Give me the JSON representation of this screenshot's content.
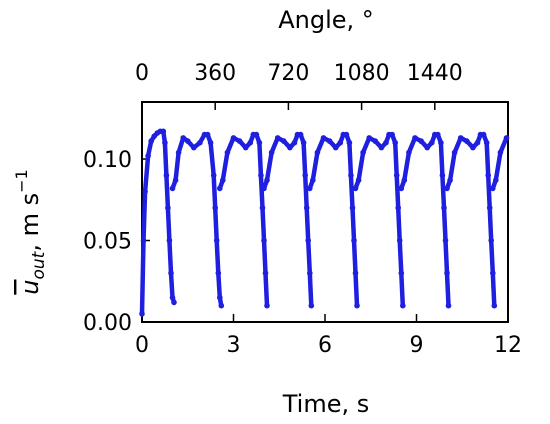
{
  "chart_data": {
    "type": "scatter",
    "xlabel": "Time, s",
    "top_xlabel": "Angle, °",
    "ylabel_main": "u",
    "ylabel_sub": "out",
    "ylabel_unit": ", m s",
    "ylabel_exp": "−1",
    "xlim": [
      0,
      12
    ],
    "ylim": [
      0.0,
      0.135
    ],
    "x_ticks": [
      0,
      3,
      6,
      9,
      12
    ],
    "x_tick_labels": [
      "0",
      "3",
      "6",
      "9",
      "12"
    ],
    "y_ticks": [
      0.0,
      0.05,
      0.1
    ],
    "y_tick_labels": [
      "0.00",
      "0.05",
      "0.10"
    ],
    "top_ticks_time": [
      0,
      2.4,
      4.8,
      7.2,
      9.6
    ],
    "top_tick_labels": [
      "0",
      "360",
      "720",
      "1080",
      "1440"
    ],
    "grid": false,
    "series": [
      {
        "color": "#1f1fe0",
        "marker": "dot",
        "x": [
          0.0,
          0.05,
          0.1,
          0.2,
          0.3,
          0.4,
          0.5,
          0.6,
          0.7,
          0.75,
          0.8,
          0.85,
          0.9,
          0.95,
          1.0,
          1.05,
          1.0,
          1.1,
          1.2,
          1.35,
          1.5,
          1.7,
          1.9,
          2.05,
          2.15,
          2.25,
          2.35,
          2.4,
          2.45,
          2.5,
          2.55,
          2.6,
          2.55,
          2.65,
          2.8,
          3.0,
          3.2,
          3.4,
          3.55,
          3.65,
          3.75,
          3.85,
          3.9,
          3.95,
          4.0,
          4.05,
          4.1,
          4.0,
          4.1,
          4.25,
          4.45,
          4.65,
          4.85,
          5.0,
          5.1,
          5.2,
          5.3,
          5.35,
          5.4,
          5.45,
          5.5,
          5.55,
          5.5,
          5.6,
          5.75,
          5.95,
          6.15,
          6.35,
          6.5,
          6.6,
          6.7,
          6.8,
          6.85,
          6.9,
          6.95,
          7.0,
          7.05,
          7.0,
          7.1,
          7.25,
          7.45,
          7.65,
          7.85,
          8.0,
          8.1,
          8.2,
          8.3,
          8.35,
          8.4,
          8.45,
          8.5,
          8.55,
          8.5,
          8.6,
          8.75,
          8.95,
          9.15,
          9.35,
          9.5,
          9.6,
          9.7,
          9.8,
          9.85,
          9.9,
          9.95,
          10.0,
          10.05,
          10.0,
          10.1,
          10.25,
          10.45,
          10.65,
          10.85,
          11.0,
          11.1,
          11.2,
          11.3,
          11.35,
          11.4,
          11.45,
          11.5,
          11.55,
          11.5,
          11.6,
          11.75,
          11.95
        ],
        "y": [
          0.005,
          0.05,
          0.08,
          0.102,
          0.111,
          0.114,
          0.116,
          0.117,
          0.117,
          0.11,
          0.09,
          0.07,
          0.05,
          0.03,
          0.015,
          0.012,
          0.082,
          0.087,
          0.104,
          0.113,
          0.111,
          0.107,
          0.11,
          0.115,
          0.115,
          0.11,
          0.09,
          0.07,
          0.05,
          0.03,
          0.015,
          0.01,
          0.082,
          0.087,
          0.104,
          0.113,
          0.111,
          0.107,
          0.11,
          0.115,
          0.115,
          0.11,
          0.09,
          0.07,
          0.05,
          0.03,
          0.01,
          0.082,
          0.087,
          0.104,
          0.113,
          0.111,
          0.107,
          0.11,
          0.115,
          0.115,
          0.11,
          0.09,
          0.07,
          0.05,
          0.03,
          0.01,
          0.082,
          0.087,
          0.104,
          0.113,
          0.111,
          0.107,
          0.11,
          0.115,
          0.115,
          0.11,
          0.09,
          0.07,
          0.05,
          0.03,
          0.01,
          0.082,
          0.087,
          0.104,
          0.113,
          0.111,
          0.107,
          0.11,
          0.115,
          0.115,
          0.11,
          0.09,
          0.07,
          0.05,
          0.03,
          0.01,
          0.082,
          0.087,
          0.104,
          0.113,
          0.111,
          0.107,
          0.11,
          0.115,
          0.115,
          0.11,
          0.09,
          0.07,
          0.05,
          0.03,
          0.01,
          0.082,
          0.087,
          0.104,
          0.113,
          0.111,
          0.107,
          0.11,
          0.115,
          0.115,
          0.11,
          0.09,
          0.07,
          0.05,
          0.03,
          0.01,
          0.082,
          0.087,
          0.104,
          0.113
        ]
      }
    ]
  }
}
